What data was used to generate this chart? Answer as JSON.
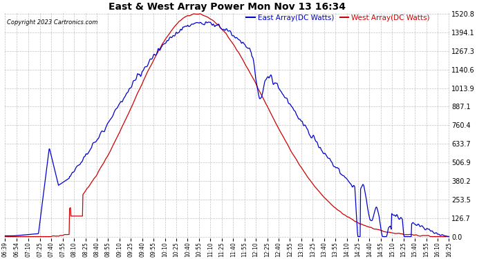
{
  "title": "East & West Array Power Mon Nov 13 16:34",
  "copyright": "Copyright 2023 Cartronics.com",
  "legend_east": "East Array(DC Watts)",
  "legend_west": "West Array(DC Watts)",
  "east_color": "#0000cc",
  "west_color": "#cc0000",
  "background_color": "#ffffff",
  "grid_color": "#bbbbbb",
  "yticks": [
    0.0,
    126.7,
    253.5,
    380.2,
    506.9,
    633.7,
    760.4,
    887.1,
    1013.9,
    1140.6,
    1267.3,
    1394.1,
    1520.8
  ],
  "ymax": 1520.8,
  "ymin": 0,
  "xtick_labels": [
    "06:39",
    "06:54",
    "07:10",
    "07:25",
    "07:40",
    "07:55",
    "08:10",
    "08:25",
    "08:40",
    "08:55",
    "09:10",
    "09:25",
    "09:40",
    "09:55",
    "10:10",
    "10:25",
    "10:40",
    "10:55",
    "11:10",
    "11:25",
    "11:40",
    "11:55",
    "12:10",
    "12:25",
    "12:40",
    "12:55",
    "13:10",
    "13:25",
    "13:40",
    "13:55",
    "14:10",
    "14:25",
    "14:40",
    "14:55",
    "15:10",
    "15:25",
    "15:40",
    "15:55",
    "16:10",
    "16:25"
  ]
}
